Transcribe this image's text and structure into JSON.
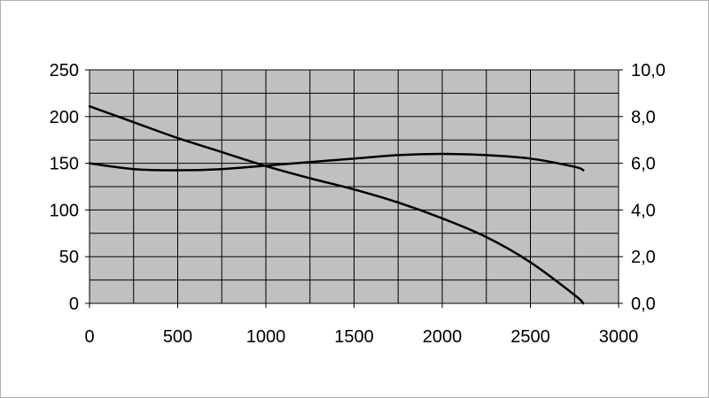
{
  "chart_data": {
    "type": "line",
    "title": "",
    "xlabel": "",
    "ylabel": "",
    "y2label": "",
    "xlim": [
      0,
      3000
    ],
    "ylim": [
      0,
      250
    ],
    "y2lim": [
      0,
      10
    ],
    "x_ticks": [
      "0",
      "500",
      "1000",
      "1500",
      "2000",
      "2500",
      "3000"
    ],
    "y_ticks": [
      "0",
      "50",
      "100",
      "150",
      "200",
      "250"
    ],
    "y2_ticks": [
      "0,0",
      "2,0",
      "4,0",
      "6,0",
      "8,0",
      "10,0"
    ],
    "grid": true,
    "plot_background": "#c0c0c0",
    "line_color": "#000000",
    "series": [
      {
        "axis": "left",
        "x": [
          0,
          250,
          500,
          750,
          1000,
          1250,
          1500,
          1750,
          2000,
          2250,
          2500,
          2750,
          2800
        ],
        "values": [
          211,
          194,
          177,
          162,
          147,
          134,
          122,
          108,
          91,
          71,
          44,
          9,
          0
        ]
      },
      {
        "axis": "right",
        "x": [
          0,
          250,
          500,
          750,
          1000,
          1250,
          1500,
          1750,
          2000,
          2250,
          2500,
          2750,
          2800
        ],
        "values": [
          6.0,
          5.75,
          5.7,
          5.75,
          5.9,
          6.05,
          6.2,
          6.35,
          6.4,
          6.35,
          6.2,
          5.85,
          5.7
        ]
      }
    ]
  }
}
